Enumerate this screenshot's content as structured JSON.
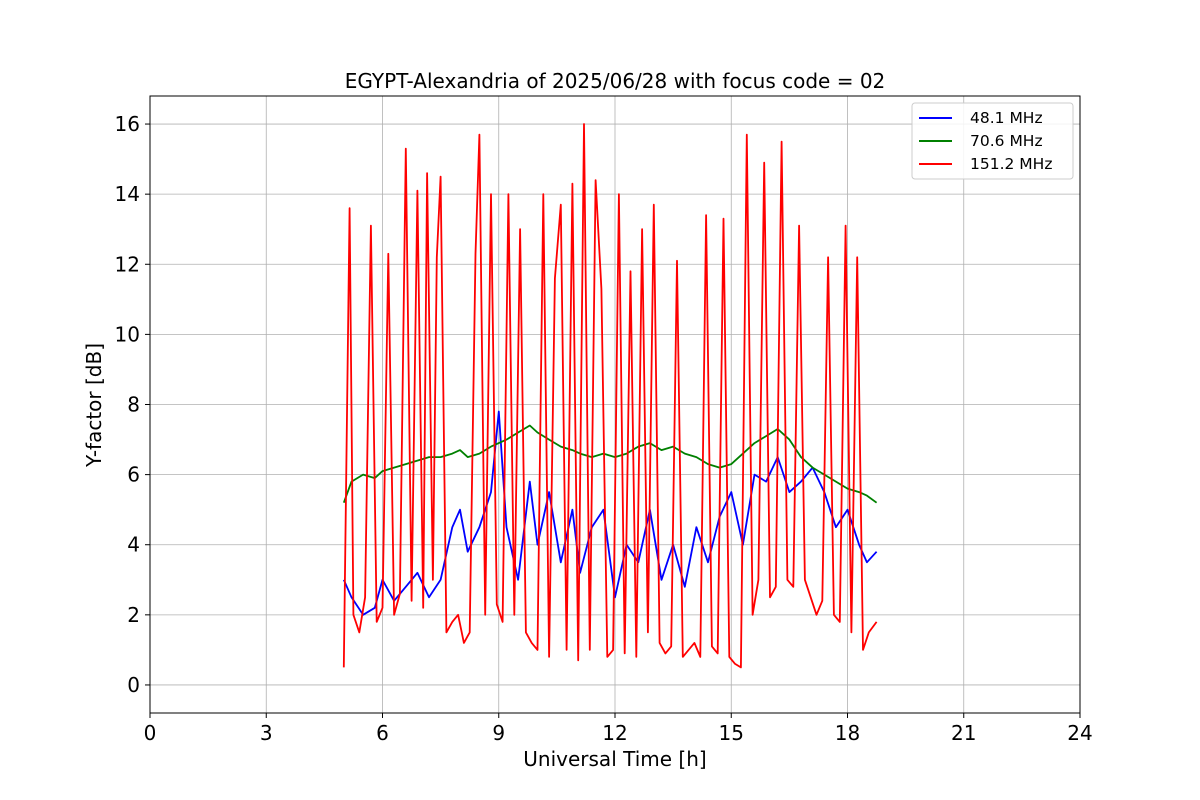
{
  "chart_data": {
    "type": "line",
    "title": "EGYPT-Alexandria of 2025/06/28 with focus code = 02",
    "xlabel": "Universal Time [h]",
    "ylabel": "Y-factor [dB]",
    "xlim": [
      0,
      24
    ],
    "ylim": [
      -0.8,
      16.8
    ],
    "xticks": [
      0,
      3,
      6,
      9,
      12,
      15,
      18,
      21,
      24
    ],
    "yticks": [
      0,
      2,
      4,
      6,
      8,
      10,
      12,
      14,
      16
    ],
    "grid": true,
    "legend_position": "top-right",
    "series": [
      {
        "name": " 48.1 MHz",
        "color": "#0000ff",
        "x": [
          5.0,
          5.2,
          5.5,
          5.8,
          6.0,
          6.3,
          6.6,
          6.9,
          7.2,
          7.5,
          7.8,
          8.0,
          8.2,
          8.5,
          8.8,
          9.0,
          9.2,
          9.5,
          9.8,
          10.0,
          10.3,
          10.6,
          10.9,
          11.1,
          11.4,
          11.7,
          12.0,
          12.3,
          12.6,
          12.9,
          13.2,
          13.5,
          13.8,
          14.1,
          14.4,
          14.7,
          15.0,
          15.3,
          15.6,
          15.9,
          16.2,
          16.5,
          16.8,
          17.1,
          17.4,
          17.7,
          18.0,
          18.3,
          18.5,
          18.75
        ],
        "y": [
          3.0,
          2.5,
          2.0,
          2.2,
          3.0,
          2.4,
          2.8,
          3.2,
          2.5,
          3.0,
          4.5,
          5.0,
          3.8,
          4.5,
          5.5,
          7.8,
          4.5,
          3.0,
          5.8,
          4.0,
          5.5,
          3.5,
          5.0,
          3.2,
          4.5,
          5.0,
          2.5,
          4.0,
          3.5,
          5.0,
          3.0,
          4.0,
          2.8,
          4.5,
          3.5,
          4.8,
          5.5,
          4.0,
          6.0,
          5.8,
          6.5,
          5.5,
          5.8,
          6.2,
          5.5,
          4.5,
          5.0,
          4.0,
          3.5,
          3.8
        ]
      },
      {
        "name": " 70.6 MHz",
        "color": "#008000",
        "x": [
          5.0,
          5.2,
          5.5,
          5.8,
          6.0,
          6.3,
          6.6,
          6.9,
          7.2,
          7.5,
          7.8,
          8.0,
          8.2,
          8.5,
          8.8,
          9.0,
          9.2,
          9.5,
          9.8,
          10.0,
          10.3,
          10.6,
          10.9,
          11.1,
          11.4,
          11.7,
          12.0,
          12.3,
          12.6,
          12.9,
          13.2,
          13.5,
          13.8,
          14.1,
          14.4,
          14.7,
          15.0,
          15.3,
          15.6,
          15.9,
          16.2,
          16.5,
          16.8,
          17.1,
          17.4,
          17.7,
          18.0,
          18.3,
          18.5,
          18.75
        ],
        "y": [
          5.2,
          5.8,
          6.0,
          5.9,
          6.1,
          6.2,
          6.3,
          6.4,
          6.5,
          6.5,
          6.6,
          6.7,
          6.5,
          6.6,
          6.8,
          6.9,
          7.0,
          7.2,
          7.4,
          7.2,
          7.0,
          6.8,
          6.7,
          6.6,
          6.5,
          6.6,
          6.5,
          6.6,
          6.8,
          6.9,
          6.7,
          6.8,
          6.6,
          6.5,
          6.3,
          6.2,
          6.3,
          6.6,
          6.9,
          7.1,
          7.3,
          7.0,
          6.5,
          6.2,
          6.0,
          5.8,
          5.6,
          5.5,
          5.4,
          5.2
        ]
      },
      {
        "name": " 151.2 MHz",
        "color": "#ff0000",
        "x": [
          5.0,
          5.15,
          5.25,
          5.4,
          5.55,
          5.7,
          5.85,
          6.0,
          6.15,
          6.3,
          6.45,
          6.6,
          6.75,
          6.9,
          7.05,
          7.15,
          7.3,
          7.4,
          7.5,
          7.65,
          7.8,
          7.95,
          8.1,
          8.25,
          8.4,
          8.5,
          8.65,
          8.8,
          8.95,
          9.1,
          9.25,
          9.4,
          9.55,
          9.7,
          9.85,
          10.0,
          10.15,
          10.3,
          10.45,
          10.6,
          10.75,
          10.9,
          11.05,
          11.2,
          11.35,
          11.5,
          11.65,
          11.8,
          11.95,
          12.1,
          12.25,
          12.4,
          12.55,
          12.7,
          12.85,
          13.0,
          13.15,
          13.3,
          13.45,
          13.6,
          13.75,
          13.9,
          14.05,
          14.2,
          14.35,
          14.5,
          14.65,
          14.8,
          14.95,
          15.1,
          15.25,
          15.4,
          15.55,
          15.7,
          15.85,
          16.0,
          16.15,
          16.3,
          16.45,
          16.6,
          16.75,
          16.9,
          17.05,
          17.2,
          17.35,
          17.5,
          17.65,
          17.8,
          17.95,
          18.1,
          18.25,
          18.4,
          18.55,
          18.75
        ],
        "y": [
          0.5,
          13.6,
          2.0,
          1.5,
          2.5,
          13.1,
          1.8,
          2.2,
          12.3,
          2.0,
          2.6,
          15.3,
          2.4,
          14.1,
          2.2,
          14.6,
          3.0,
          12.2,
          14.5,
          1.5,
          1.8,
          2.0,
          1.2,
          1.5,
          12.3,
          15.7,
          2.0,
          14.0,
          2.3,
          1.8,
          14.0,
          2.0,
          13.0,
          1.5,
          1.2,
          1.0,
          14.0,
          0.8,
          11.6,
          13.7,
          1.0,
          14.3,
          0.7,
          16.0,
          1.0,
          14.4,
          11.3,
          0.8,
          1.0,
          14.0,
          0.9,
          11.8,
          0.8,
          13.0,
          1.5,
          13.7,
          1.2,
          0.9,
          1.1,
          12.1,
          0.8,
          1.0,
          1.2,
          0.8,
          13.4,
          1.1,
          0.9,
          13.3,
          0.8,
          0.6,
          0.5,
          15.7,
          2.0,
          3.0,
          14.9,
          2.5,
          2.8,
          15.5,
          3.0,
          2.8,
          13.1,
          3.0,
          2.5,
          2.0,
          2.4,
          12.2,
          2.0,
          1.8,
          13.1,
          1.5,
          12.2,
          1.0,
          1.5,
          1.8
        ]
      }
    ]
  }
}
